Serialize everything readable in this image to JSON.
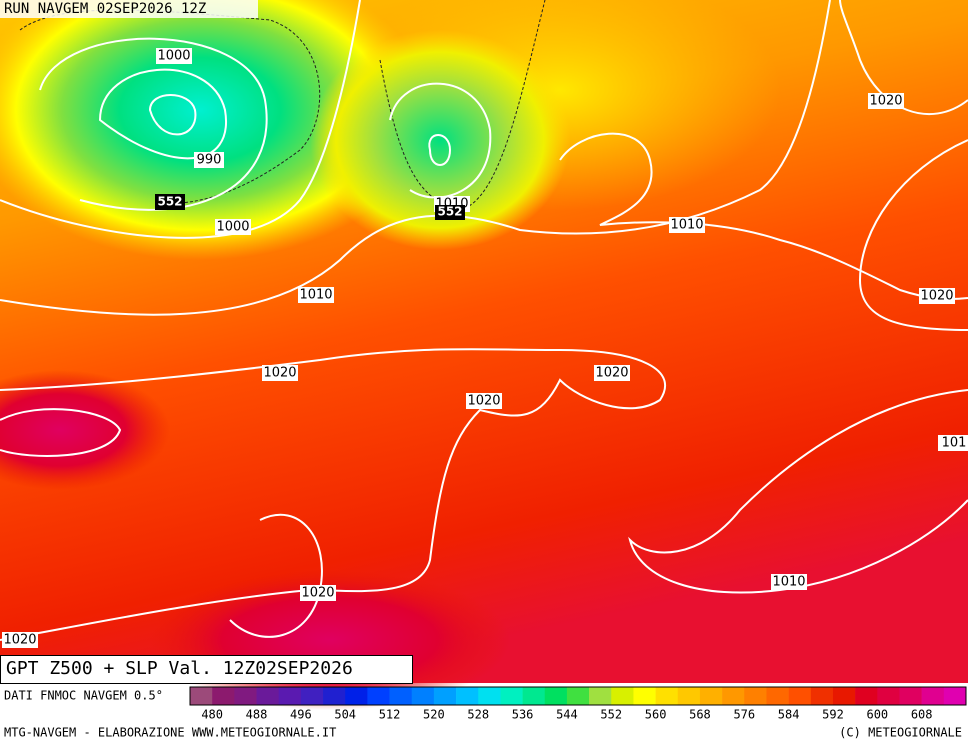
{
  "header": {
    "run": "RUN NAVGEM 02SEP2026 12Z"
  },
  "map": {
    "labels": [
      "1000",
      "990",
      "552",
      "1000",
      "1010",
      "552",
      "1020",
      "1010",
      "1010",
      "1020",
      "1020",
      "1020",
      "1020",
      "101",
      "1010",
      "1020",
      "1020"
    ]
  },
  "title": "GPT Z500 + SLP Val. 12Z02SEP2026",
  "legend": {
    "source": "DATI FNMOC NAVGEM 0.5°",
    "ticks": [
      "480",
      "488",
      "496",
      "504",
      "512",
      "520",
      "528",
      "536",
      "544",
      "552",
      "560",
      "568",
      "576",
      "584",
      "592",
      "600",
      "608"
    ],
    "colors": [
      "#9c4a7a",
      "#8c1a6e",
      "#801a80",
      "#6a1a9a",
      "#5a1ab0",
      "#4020c0",
      "#2020d0",
      "#0020e8",
      "#0040ff",
      "#0060ff",
      "#0080ff",
      "#00a0ff",
      "#00c0ff",
      "#00e0f0",
      "#00f0c0",
      "#00e890",
      "#00e060",
      "#40e040",
      "#a0e040",
      "#d8f000",
      "#ffff00",
      "#ffe000",
      "#ffc800",
      "#ffb000",
      "#ff9800",
      "#ff8000",
      "#ff6800",
      "#ff5000",
      "#f03000",
      "#e81800",
      "#e00020",
      "#e00040",
      "#e00060",
      "#e00090",
      "#e000b0"
    ]
  },
  "footer": {
    "left": "MTG-NAVGEM - ELABORAZIONE WWW.METEOGIORNALE.IT",
    "right": "(C) METEOGIORNALE"
  }
}
